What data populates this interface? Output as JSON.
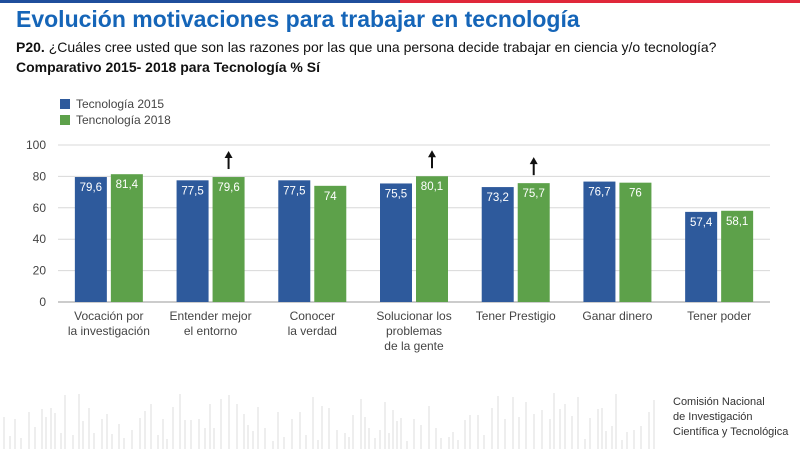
{
  "header": {
    "title": "Evolución motivaciones para trabajar en tecnología",
    "question_prefix": "P20.",
    "question_text": " ¿Cuáles cree usted que son las razones por las que una persona decide trabajar en ciencia y/o tecnología?",
    "subtitle": "Comparativo 2015- 2018 para Tecnología % Sí"
  },
  "chart_data": {
    "type": "bar",
    "title": "",
    "xlabel": "",
    "ylabel": "",
    "ylim": [
      0,
      100
    ],
    "yticks": [
      0,
      20,
      40,
      60,
      80,
      100
    ],
    "grid": true,
    "legend_position": "top-left",
    "categories": [
      [
        "Vocación por",
        "la investigación"
      ],
      [
        "Entender mejor",
        "el entorno"
      ],
      [
        "Conocer",
        "la verdad"
      ],
      [
        "Solucionar los",
        "problemas",
        "de la gente"
      ],
      [
        "Tener Prestigio"
      ],
      [
        "Ganar dinero"
      ],
      [
        "Tener poder"
      ]
    ],
    "series": [
      {
        "name": "Tecnología 2015",
        "color": "#2e5a9c",
        "values": [
          79.6,
          77.5,
          77.5,
          75.5,
          73.2,
          76.7,
          57.4
        ],
        "labels": [
          "79,6",
          "77,5",
          "77,5",
          "75,5",
          "73,2",
          "76,7",
          "57,4"
        ]
      },
      {
        "name": "Tencnología 2018",
        "color": "#5da14a",
        "values": [
          81.4,
          79.6,
          74,
          80.1,
          75.7,
          76,
          58.1
        ],
        "labels": [
          "81,4",
          "79,6",
          "74",
          "80,1",
          "75,7",
          "76",
          "58,1"
        ]
      }
    ],
    "increase_arrows": [
      1,
      3,
      4
    ]
  },
  "footer": {
    "org_line1": "Comisión Nacional",
    "org_line2": "de Investigación",
    "org_line3": "Científica y Tecnológica"
  },
  "colors": {
    "title": "#1565b8",
    "flag_blue": "#1f4e9c",
    "flag_red": "#e0283a"
  }
}
